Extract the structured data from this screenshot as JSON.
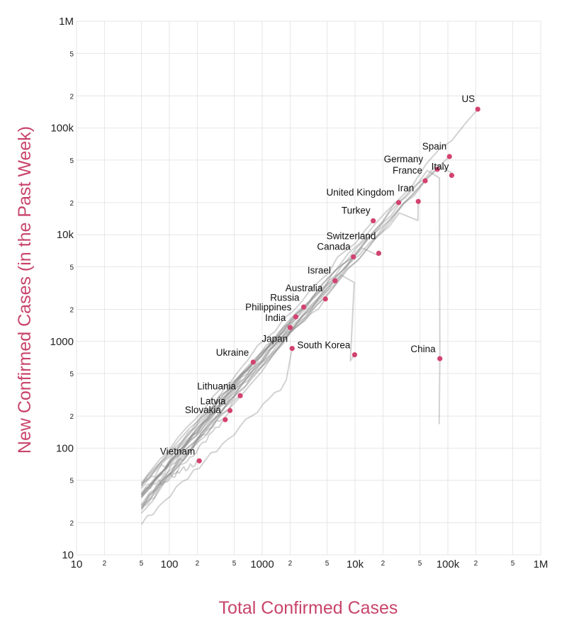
{
  "chart_data": {
    "type": "scatter",
    "scale": "log-log",
    "title": "",
    "xlabel": "Total Confirmed Cases",
    "ylabel": "New Confirmed Cases (in the Past Week)",
    "xlim": [
      10,
      1000000
    ],
    "ylim": [
      10,
      1000000
    ],
    "grid": true,
    "legend": "none",
    "x_major_ticks": [
      {
        "value": 10,
        "label": "10"
      },
      {
        "value": 100,
        "label": "100"
      },
      {
        "value": 1000,
        "label": "1000"
      },
      {
        "value": 10000,
        "label": "10k"
      },
      {
        "value": 100000,
        "label": "100k"
      },
      {
        "value": 1000000,
        "label": "1M"
      }
    ],
    "y_major_ticks": [
      {
        "value": 10,
        "label": "10"
      },
      {
        "value": 100,
        "label": "100"
      },
      {
        "value": 1000,
        "label": "1000"
      },
      {
        "value": 10000,
        "label": "10k"
      },
      {
        "value": 100000,
        "label": "100k"
      },
      {
        "value": 1000000,
        "label": "1M"
      }
    ],
    "minor_tick_digits": [
      "2",
      "5"
    ],
    "countries": [
      {
        "name": "US",
        "x": 210000,
        "y": 150000
      },
      {
        "name": "Spain",
        "x": 104000,
        "y": 54000
      },
      {
        "name": "Germany",
        "x": 77000,
        "y": 41000
      },
      {
        "name": "Italy",
        "x": 110000,
        "y": 36000
      },
      {
        "name": "France",
        "x": 57000,
        "y": 32000
      },
      {
        "name": "United Kingdom",
        "x": 29500,
        "y": 20000
      },
      {
        "name": "Iran",
        "x": 48000,
        "y": 20500
      },
      {
        "name": "Turkey",
        "x": 15700,
        "y": 13500
      },
      {
        "name": "Switzerland",
        "x": 18000,
        "y": 6700
      },
      {
        "name": "Canada",
        "x": 9600,
        "y": 6200
      },
      {
        "name": "Israel",
        "x": 6100,
        "y": 3700
      },
      {
        "name": "Australia",
        "x": 4800,
        "y": 2500
      },
      {
        "name": "Russia",
        "x": 2800,
        "y": 2100
      },
      {
        "name": "Philippines",
        "x": 2300,
        "y": 1700
      },
      {
        "name": "India",
        "x": 2000,
        "y": 1350
      },
      {
        "name": "Japan",
        "x": 2100,
        "y": 860
      },
      {
        "name": "South Korea",
        "x": 9900,
        "y": 750
      },
      {
        "name": "China",
        "x": 82000,
        "y": 690
      },
      {
        "name": "Ukraine",
        "x": 800,
        "y": 640
      },
      {
        "name": "Lithuania",
        "x": 580,
        "y": 310
      },
      {
        "name": "Latvia",
        "x": 450,
        "y": 225
      },
      {
        "name": "Slovakia",
        "x": 400,
        "y": 185
      },
      {
        "name": "Vietnam",
        "x": 210,
        "y": 76
      }
    ]
  }
}
